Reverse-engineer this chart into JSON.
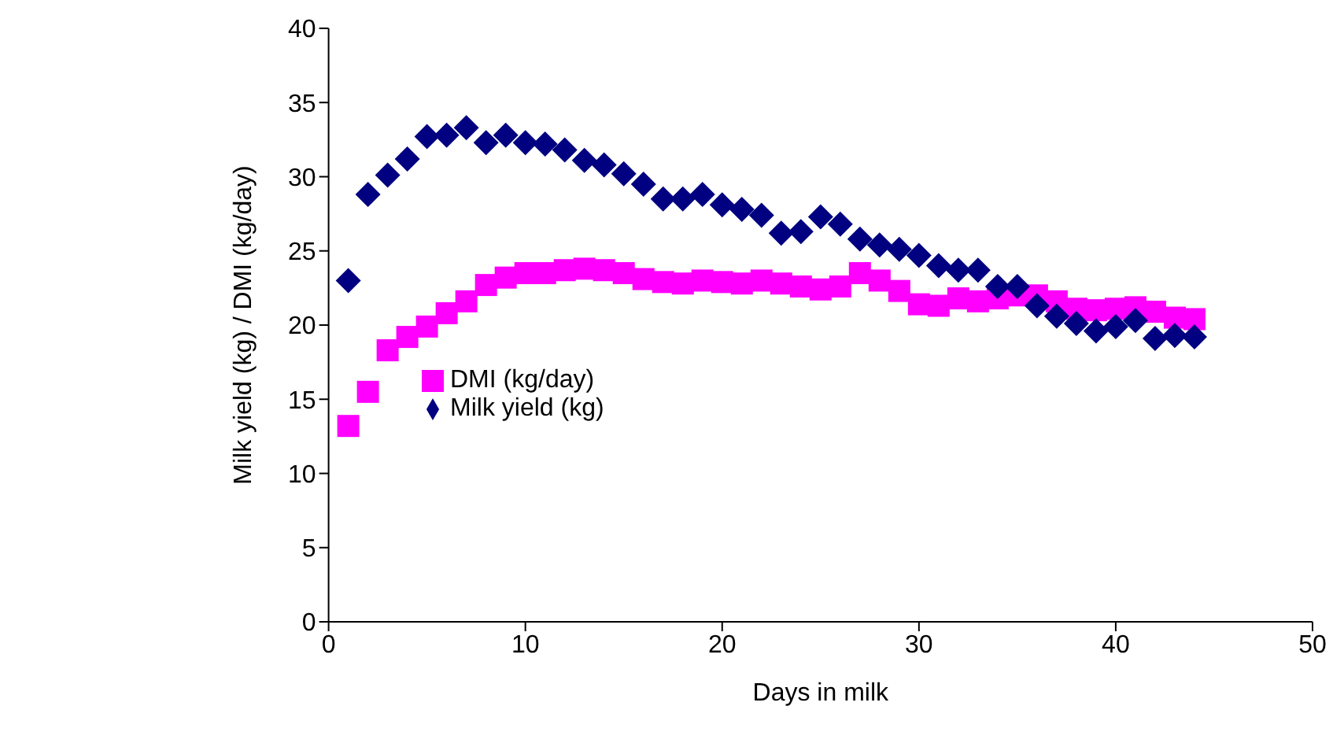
{
  "chart_data": {
    "type": "scatter",
    "xlabel": "Days in milk",
    "ylabel": "Milk yield (kg) / DMI (kg/day)",
    "xlim": [
      0,
      50
    ],
    "xticks": [
      0,
      10,
      20,
      30,
      40,
      50
    ],
    "ylim": [
      0,
      40
    ],
    "yticks": [
      0,
      5,
      10,
      15,
      20,
      25,
      30,
      35,
      40
    ],
    "grid": false,
    "legend": "center",
    "x": [
      1,
      2,
      3,
      4,
      5,
      6,
      7,
      8,
      9,
      10,
      11,
      12,
      13,
      14,
      15,
      16,
      17,
      18,
      19,
      20,
      21,
      22,
      23,
      24,
      25,
      26,
      27,
      28,
      29,
      30,
      31,
      32,
      33,
      34,
      35,
      36,
      37,
      38,
      39,
      40,
      41,
      42,
      43,
      44
    ],
    "series": [
      {
        "name": "Milk yield (kg)",
        "color": "#000080",
        "marker": "diamond",
        "values": [
          23.0,
          28.8,
          30.1,
          31.2,
          32.7,
          32.8,
          33.3,
          32.3,
          32.8,
          32.3,
          32.2,
          31.8,
          31.1,
          30.8,
          30.2,
          29.5,
          28.5,
          28.5,
          28.8,
          28.1,
          27.8,
          27.4,
          26.2,
          26.3,
          27.3,
          26.8,
          25.8,
          25.4,
          25.1,
          24.7,
          24.0,
          23.7,
          23.7,
          22.6,
          22.6,
          21.3,
          20.6,
          20.1,
          19.6,
          19.9,
          20.3,
          19.1,
          19.3,
          19.2
        ]
      },
      {
        "name": "DMI (kg/day)",
        "color": "#ff00ff",
        "marker": "square",
        "values": [
          13.2,
          15.5,
          18.3,
          19.2,
          19.9,
          20.8,
          21.6,
          22.7,
          23.2,
          23.5,
          23.5,
          23.7,
          23.8,
          23.7,
          23.5,
          23.1,
          22.9,
          22.8,
          23.0,
          22.9,
          22.8,
          23.0,
          22.8,
          22.6,
          22.4,
          22.6,
          23.5,
          23.0,
          22.3,
          21.4,
          21.3,
          21.8,
          21.6,
          21.8,
          22.0,
          22.0,
          21.6,
          21.1,
          21.0,
          21.1,
          21.2,
          20.9,
          20.5,
          20.4
        ]
      }
    ]
  }
}
